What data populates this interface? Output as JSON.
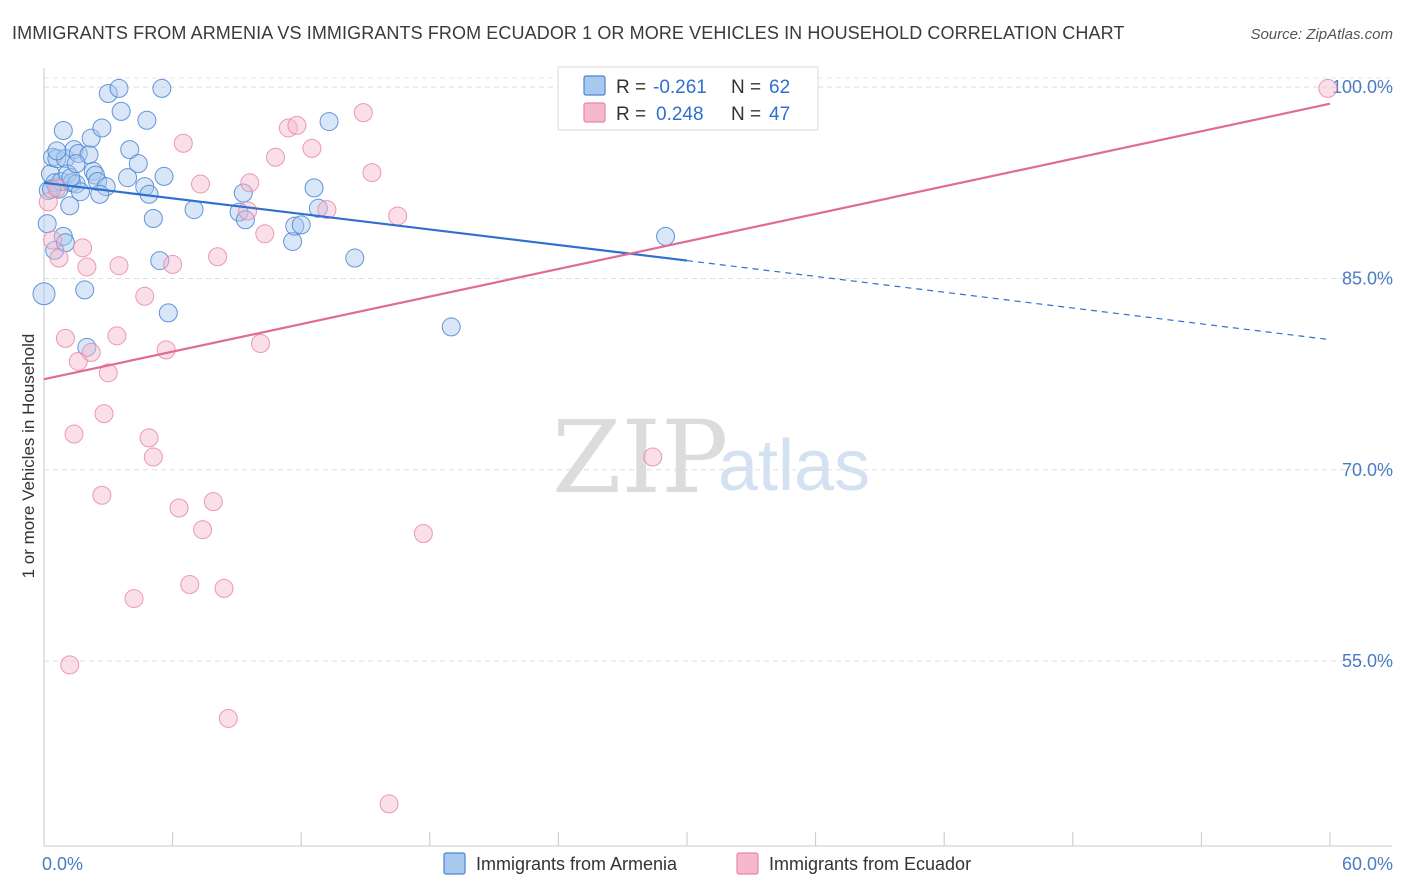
{
  "header": {
    "title": "IMMIGRANTS FROM ARMENIA VS IMMIGRANTS FROM ECUADOR 1 OR MORE VEHICLES IN HOUSEHOLD CORRELATION CHART",
    "source": "Source: ZipAtlas.com"
  },
  "watermark": {
    "zip": "ZIP",
    "atlas": "atlas"
  },
  "legend": {
    "armenia": {
      "r_label": "R =",
      "r_value": "-0.261",
      "n_label": "N =",
      "n_value": "62"
    },
    "ecuador": {
      "r_label": "R =",
      "r_value": "0.248",
      "n_label": "N =",
      "n_value": "47"
    }
  },
  "colors": {
    "armenia_fill": "#a9c8ee",
    "armenia_stroke": "#4a84d4",
    "armenia_line": "#2f6fd0",
    "ecuador_fill": "#f6b8cb",
    "ecuador_stroke": "#e888a8",
    "ecuador_line": "#e06c96",
    "tick_text": "#4a7cc4"
  },
  "chart_data": {
    "type": "scatter",
    "title": "IMMIGRANTS FROM ARMENIA VS IMMIGRANTS FROM ECUADOR 1 OR MORE VEHICLES IN HOUSEHOLD CORRELATION CHART",
    "xlabel": "",
    "ylabel": "1 or more Vehicles in Household",
    "xlim": [
      0,
      60
    ],
    "ylim": [
      40.5,
      101.5
    ],
    "x_tick_labels": [
      "0.0%",
      "60.0%"
    ],
    "y_ticks": [
      55,
      70,
      85,
      100
    ],
    "y_tick_labels": [
      "55.0%",
      "70.0%",
      "85.0%",
      "100.0%"
    ],
    "grid": true,
    "legend_position": "top-center",
    "series": [
      {
        "name": "Immigrants from Armenia",
        "r": -0.261,
        "n": 62,
        "points": [
          [
            0.2,
            91.9
          ],
          [
            0.3,
            93.2
          ],
          [
            0.4,
            94.5
          ],
          [
            0.5,
            92.5
          ],
          [
            0.6,
            94.4
          ],
          [
            0.7,
            92.0
          ],
          [
            0.8,
            92.6
          ],
          [
            0.9,
            96.6
          ],
          [
            1.0,
            94.4
          ],
          [
            1.1,
            93.2
          ],
          [
            1.2,
            90.7
          ],
          [
            1.3,
            92.5
          ],
          [
            1.4,
            95.1
          ],
          [
            1.5,
            92.4
          ],
          [
            1.6,
            94.8
          ],
          [
            1.7,
            91.8
          ],
          [
            2.1,
            94.7
          ],
          [
            2.2,
            96.0
          ],
          [
            2.3,
            93.4
          ],
          [
            2.4,
            93.1
          ],
          [
            2.5,
            92.6
          ],
          [
            2.7,
            96.8
          ],
          [
            2.9,
            92.2
          ],
          [
            3.0,
            99.5
          ],
          [
            3.5,
            99.9
          ],
          [
            3.6,
            98.1
          ],
          [
            4.0,
            95.1
          ],
          [
            4.4,
            94.0
          ],
          [
            4.7,
            92.2
          ],
          [
            4.8,
            97.4
          ],
          [
            4.9,
            91.6
          ],
          [
            5.1,
            89.7
          ],
          [
            5.4,
            86.4
          ],
          [
            5.5,
            99.9
          ],
          [
            5.6,
            93.0
          ],
          [
            5.8,
            82.3
          ],
          [
            7.0,
            90.4
          ],
          [
            9.1,
            90.2
          ],
          [
            9.3,
            91.7
          ],
          [
            9.4,
            89.6
          ],
          [
            11.6,
            87.9
          ],
          [
            11.7,
            89.1
          ],
          [
            12.0,
            89.2
          ],
          [
            12.6,
            92.1
          ],
          [
            12.8,
            90.5
          ],
          [
            13.3,
            97.3
          ],
          [
            14.5,
            86.6
          ],
          [
            19.0,
            81.2
          ],
          [
            29.0,
            88.3
          ],
          [
            0.15,
            89.3
          ],
          [
            0.5,
            87.2
          ],
          [
            0.9,
            88.3
          ],
          [
            1.0,
            87.8
          ],
          [
            2.0,
            79.6
          ],
          [
            0.0,
            83.8
          ],
          [
            1.9,
            84.1
          ],
          [
            0.6,
            95.0
          ],
          [
            0.35,
            92.0
          ],
          [
            1.25,
            92.9
          ],
          [
            2.6,
            91.6
          ],
          [
            3.9,
            92.9
          ],
          [
            1.5,
            94.0
          ]
        ],
        "trend": {
          "x_start": 0,
          "y_start": 92.5,
          "x_solid_end": 30,
          "y_solid_end": 86.4,
          "x_dashed_end": 60,
          "y_dashed_end": 80.2
        }
      },
      {
        "name": "Immigrants from Ecuador",
        "r": 0.248,
        "n": 47,
        "points": [
          [
            0.2,
            91.0
          ],
          [
            0.4,
            88.0
          ],
          [
            0.6,
            92.1
          ],
          [
            0.7,
            86.6
          ],
          [
            1.0,
            80.3
          ],
          [
            1.2,
            54.7
          ],
          [
            1.4,
            72.8
          ],
          [
            1.6,
            78.5
          ],
          [
            1.8,
            87.4
          ],
          [
            2.0,
            85.9
          ],
          [
            2.2,
            79.2
          ],
          [
            2.7,
            68.0
          ],
          [
            2.8,
            74.4
          ],
          [
            3.0,
            77.6
          ],
          [
            3.4,
            80.5
          ],
          [
            3.5,
            86.0
          ],
          [
            4.2,
            59.9
          ],
          [
            4.7,
            83.6
          ],
          [
            4.9,
            72.5
          ],
          [
            5.1,
            71.0
          ],
          [
            5.7,
            79.4
          ],
          [
            6.0,
            86.1
          ],
          [
            6.3,
            67.0
          ],
          [
            6.5,
            95.6
          ],
          [
            6.8,
            61.0
          ],
          [
            7.3,
            92.4
          ],
          [
            7.4,
            65.3
          ],
          [
            7.9,
            67.5
          ],
          [
            8.1,
            86.7
          ],
          [
            8.4,
            60.7
          ],
          [
            8.6,
            50.5
          ],
          [
            9.5,
            90.3
          ],
          [
            9.6,
            92.5
          ],
          [
            10.1,
            79.9
          ],
          [
            10.3,
            88.5
          ],
          [
            10.8,
            94.5
          ],
          [
            11.4,
            96.8
          ],
          [
            11.8,
            97.0
          ],
          [
            12.5,
            95.2
          ],
          [
            13.2,
            90.4
          ],
          [
            14.9,
            98.0
          ],
          [
            15.3,
            93.3
          ],
          [
            16.1,
            43.8
          ],
          [
            16.5,
            89.9
          ],
          [
            17.7,
            65.0
          ],
          [
            28.4,
            71.0
          ],
          [
            59.9,
            99.9
          ]
        ],
        "trend": {
          "x_start": 0,
          "y_start": 77.1,
          "x_end": 60,
          "y_end": 98.7
        }
      }
    ]
  }
}
